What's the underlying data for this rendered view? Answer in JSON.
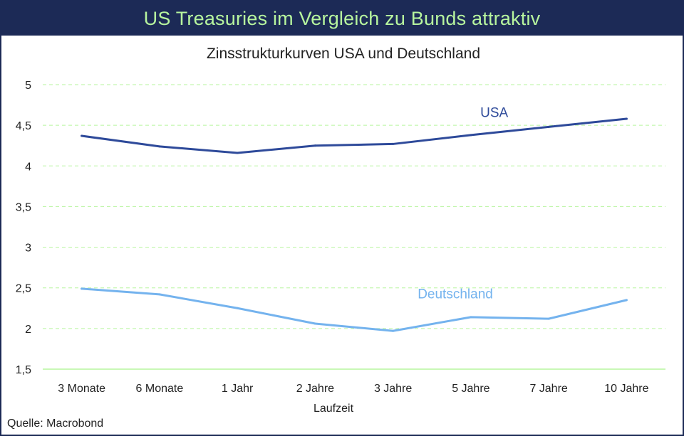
{
  "header": {
    "title": "US Treasuries im Vergleich zu Bunds attraktiv"
  },
  "source": "Quelle: Macrobond",
  "colors": {
    "banner_bg": "#1c2a56",
    "banner_text": "#b7f59e",
    "usa": "#2e4a9a",
    "deutschland": "#74b3ee",
    "grid": "#b7f59e"
  },
  "chart_data": {
    "type": "line",
    "title": "Zinsstrukturkurven USA und Deutschland",
    "xlabel": "Laufzeit",
    "ylabel": "",
    "categories": [
      "3 Monate",
      "6 Monate",
      "1 Jahr",
      "2 Jahre",
      "3 Jahre",
      "5 Jahre",
      "7 Jahre",
      "10 Jahre"
    ],
    "ylim": [
      1.5,
      5
    ],
    "yticks": [
      {
        "value": 1.5,
        "label": "1,5"
      },
      {
        "value": 2,
        "label": "2"
      },
      {
        "value": 2.5,
        "label": "2,5"
      },
      {
        "value": 3,
        "label": "3"
      },
      {
        "value": 3.5,
        "label": "3,5"
      },
      {
        "value": 4,
        "label": "4"
      },
      {
        "value": 4.5,
        "label": "4,5"
      },
      {
        "value": 5,
        "label": "5"
      }
    ],
    "grid": true,
    "series": [
      {
        "name": "USA",
        "values": [
          4.37,
          4.24,
          4.16,
          4.25,
          4.27,
          4.38,
          4.48,
          4.58
        ]
      },
      {
        "name": "Deutschland",
        "values": [
          2.49,
          2.42,
          2.25,
          2.06,
          1.97,
          2.14,
          2.12,
          2.35
        ]
      }
    ]
  }
}
